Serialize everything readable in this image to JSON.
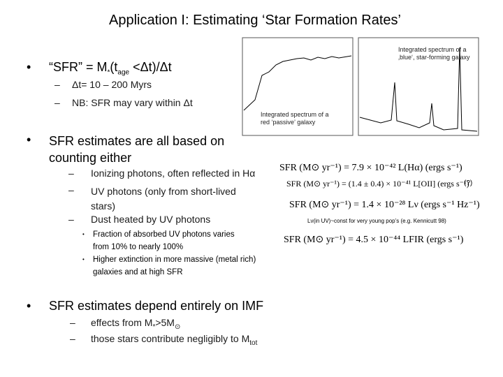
{
  "title": "Application I: Estimating ‘Star Formation Rates’",
  "bullets": [
    {
      "parts": [
        "“SFR” = M",
        "*",
        "(t",
        "age",
        " <Δt)/Δt"
      ],
      "subs": [
        "Δt= 10 – 200 Myrs",
        "NB: SFR may vary within Δt"
      ]
    },
    {
      "text": "SFR estimates are all based on counting either",
      "subs": [
        "Ionizing photons, often reflected in Hα",
        "UV photons (only from short-lived stars)",
        "Dust heated by UV photons"
      ],
      "subsubs": [
        "Fraction of absorbed UV photons varies from 10% to nearly 100%",
        "Higher extinction in more massive (metal rich) galaxies and at high SFR"
      ]
    },
    {
      "text": "SFR estimates depend entirely on IMF",
      "subs": [
        {
          "parts": [
            "effects from M",
            "*",
            ">5M",
            "⊙"
          ]
        },
        {
          "parts": [
            "those stars contribute negligibly to M",
            "tot"
          ]
        }
      ]
    }
  ],
  "annotations": {
    "blue": "Integrated spectrum of a ‚blue‘, star-forming galaxy",
    "red": "Integrated spectrum of a red ‘passive’ galaxy"
  },
  "equations": [
    "SFR (M⊙ yr⁻¹) = 7.9 × 10⁻⁴² L(Hα) (ergs s⁻¹)",
    "SFR (M⊙ yr⁻¹) = (1.4 ± 0.4) × 10⁻⁴¹ L[OII] (ergs s⁻¹)",
    "SFR (M⊙ yr⁻¹) = 1.4 × 10⁻²⁸ Lν (ergs s⁻¹ Hz⁻¹)",
    "SFR (M⊙ yr⁻¹) = 4.5 × 10⁻⁴⁴ LFIR (ergs s⁻¹)"
  ],
  "equation_note": "(?)",
  "uv_note": "Lν(in UV)~const for very young pop’s (e.g. Kennicutt 98)"
}
